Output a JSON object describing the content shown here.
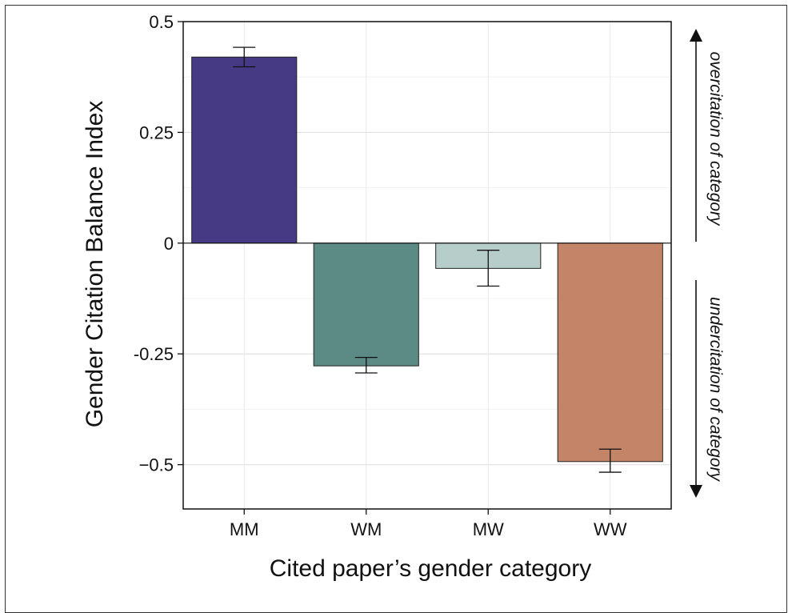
{
  "chart_data": {
    "type": "bar",
    "categories": [
      "MM",
      "WM",
      "MW",
      "WW"
    ],
    "values": [
      0.42,
      -0.277,
      -0.057,
      -0.493
    ],
    "errors": [
      {
        "low": 0.398,
        "high": 0.442
      },
      {
        "low": -0.293,
        "high": -0.258
      },
      {
        "low": -0.097,
        "high": -0.016
      },
      {
        "low": -0.517,
        "high": -0.465
      }
    ],
    "colors": [
      "#463a84",
      "#5c8a85",
      "#b6cdc9",
      "#c38468"
    ],
    "xlabel": "Cited paper’s gender category",
    "ylabel": "Gender Citation Balance Index",
    "ylim": [
      -0.6,
      0.5
    ],
    "yticks": [
      0.5,
      0.25,
      0,
      -0.25,
      -0.5
    ],
    "ytick_labels": [
      "0.5",
      "0.25",
      "0",
      "-0.25",
      "−0.5"
    ],
    "grid": true,
    "annotations": {
      "top": "overcitation of category",
      "bottom": "undercitation of category"
    }
  }
}
